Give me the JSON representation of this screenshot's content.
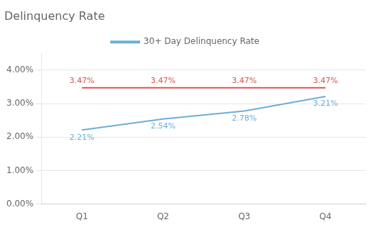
{
  "chart_data": {
    "type": "line",
    "title": "Delinquency Rate",
    "categories": [
      "Q1",
      "Q2",
      "Q3",
      "Q4"
    ],
    "series": [
      {
        "name": "30+ Day Delinquency Rate",
        "color": "#6baed6",
        "values": [
          0.0221,
          0.0254,
          0.0278,
          0.0321
        ],
        "value_labels": [
          "2.21%",
          "2.54%",
          "2.78%",
          "3.21%"
        ]
      },
      {
        "color": "#d9534f",
        "values": [
          0.0347,
          0.0347,
          0.0347,
          0.0347
        ],
        "value_labels": [
          "3.47%",
          "3.47%",
          "3.47%",
          "3.47%"
        ]
      }
    ],
    "ylim": [
      0.0,
      0.045
    ],
    "yticks": [
      {
        "value": 0.0,
        "label": "0.00%"
      },
      {
        "value": 0.01,
        "label": "1.00%"
      },
      {
        "value": 0.02,
        "label": "2.00%"
      },
      {
        "value": 0.03,
        "label": "3.00%"
      },
      {
        "value": 0.04,
        "label": "4.00%"
      }
    ],
    "grid": true,
    "legend": "top",
    "data_labels": true
  }
}
